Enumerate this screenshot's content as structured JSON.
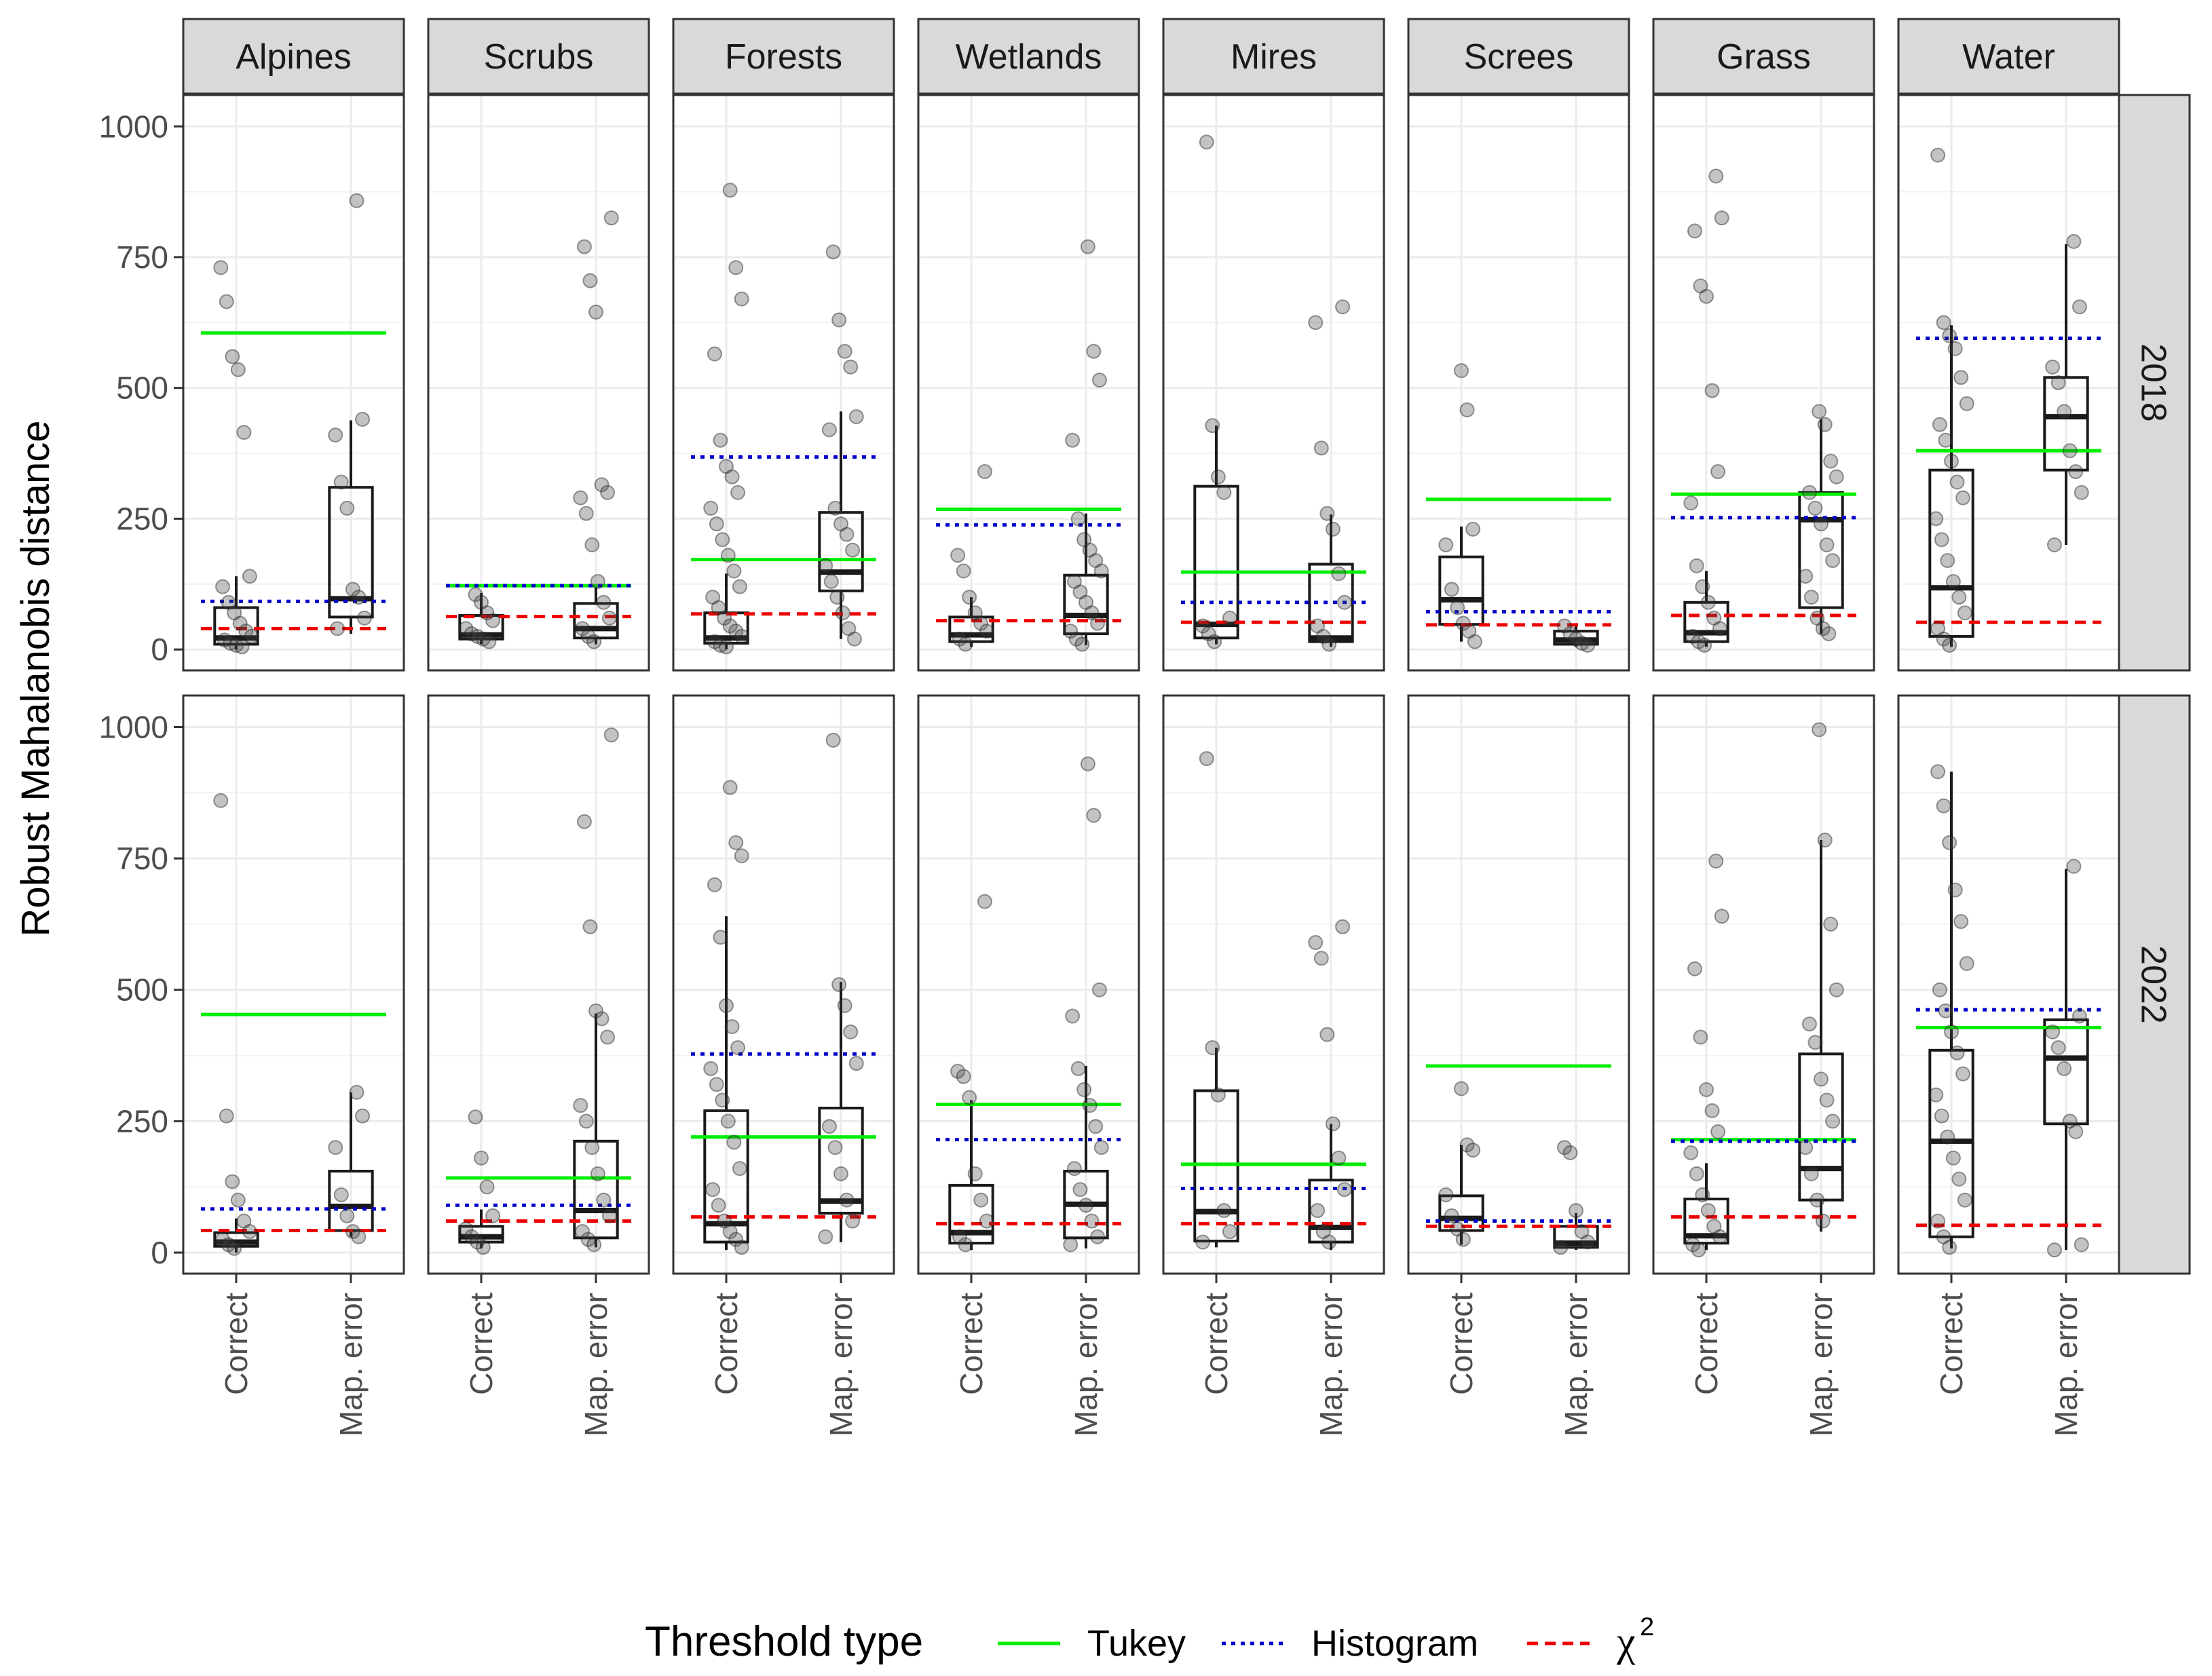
{
  "chart_data": {
    "type": "boxplot",
    "ylabel": "Robust Mahalanobis distance",
    "ylim": [
      -40,
      1060
    ],
    "yticks": [
      0,
      250,
      500,
      750,
      1000
    ],
    "categories": [
      "Correct",
      "Map. error"
    ],
    "legend": {
      "title": "Threshold type",
      "position": "bottom",
      "entries": [
        {
          "name": "Tukey",
          "color": "#00ee00",
          "style": "solid"
        },
        {
          "name": "Histogram",
          "color": "#0000cc",
          "style": "dotted"
        },
        {
          "name": "χ",
          "sup": "2",
          "color": "#ee0000",
          "style": "dashed"
        }
      ]
    },
    "columns": [
      "Alpines",
      "Scrubs",
      "Forests",
      "Wetlands",
      "Mires",
      "Screes",
      "Grass",
      "Water"
    ],
    "rows": [
      "2018",
      "2022"
    ],
    "colors": {
      "tukey": "#00ee00",
      "hist": "#0000cc",
      "chi": "#ee0000",
      "box": "#1a1a1a",
      "point": "#444444",
      "strip": "#d9d9d9",
      "grid": "#ebebeb"
    },
    "panels": [
      {
        "row": "2018",
        "col": "Alpines",
        "tukey": 605,
        "hist": 92,
        "chi": 40,
        "boxes": [
          {
            "q1": 10,
            "med": 22,
            "q3": 80,
            "lo": 0,
            "hi": 140,
            "points": [
              730,
              665,
              560,
              535,
              415,
              140,
              120,
              90,
              70,
              50,
              35,
              25,
              18,
              12,
              8,
              5
            ]
          },
          {
            "q1": 62,
            "med": 97,
            "q3": 310,
            "lo": 30,
            "hi": 438,
            "points": [
              858,
              440,
              410,
              320,
              270,
              115,
              100,
              60,
              40
            ]
          }
        ]
      },
      {
        "row": "2018",
        "col": "Scrubs",
        "tukey": 122,
        "hist": 122,
        "chi": 63,
        "boxes": [
          {
            "q1": 20,
            "med": 28,
            "q3": 65,
            "lo": 10,
            "hi": 108,
            "points": [
              105,
              90,
              70,
              55,
              40,
              30,
              25,
              20,
              15
            ]
          },
          {
            "q1": 22,
            "med": 40,
            "q3": 88,
            "lo": 10,
            "hi": 120,
            "points": [
              825,
              770,
              705,
              645,
              315,
              300,
              290,
              260,
              200,
              130,
              90,
              60,
              40,
              25,
              15
            ]
          }
        ]
      },
      {
        "row": "2018",
        "col": "Forests",
        "tukey": 172,
        "hist": 368,
        "chi": 68,
        "boxes": [
          {
            "q1": 12,
            "med": 22,
            "q3": 70,
            "lo": 0,
            "hi": 145,
            "points": [
              878,
              730,
              670,
              565,
              400,
              350,
              330,
              300,
              270,
              240,
              210,
              180,
              150,
              120,
              100,
              80,
              60,
              45,
              35,
              25,
              15,
              8,
              5
            ]
          },
          {
            "q1": 112,
            "med": 148,
            "q3": 262,
            "lo": 20,
            "hi": 455,
            "points": [
              760,
              630,
              570,
              540,
              445,
              420,
              270,
              240,
              220,
              190,
              160,
              130,
              100,
              70,
              40,
              20
            ]
          }
        ]
      },
      {
        "row": "2018",
        "col": "Wetlands",
        "tukey": 268,
        "hist": 238,
        "chi": 55,
        "boxes": [
          {
            "q1": 15,
            "med": 28,
            "q3": 62,
            "lo": 5,
            "hi": 100,
            "points": [
              340,
              180,
              150,
              100,
              70,
              50,
              35,
              20,
              10
            ]
          },
          {
            "q1": 30,
            "med": 65,
            "q3": 142,
            "lo": 8,
            "hi": 260,
            "points": [
              770,
              570,
              515,
              400,
              250,
              210,
              190,
              170,
              150,
              130,
              110,
              90,
              70,
              50,
              35,
              20,
              10
            ]
          }
        ]
      },
      {
        "row": "2018",
        "col": "Mires",
        "tukey": 148,
        "hist": 90,
        "chi": 52,
        "boxes": [
          {
            "q1": 22,
            "med": 48,
            "q3": 312,
            "lo": 10,
            "hi": 428,
            "points": [
              970,
              428,
              330,
              300,
              60,
              45,
              30,
              15
            ]
          },
          {
            "q1": 15,
            "med": 22,
            "q3": 163,
            "lo": 5,
            "hi": 258,
            "points": [
              655,
              625,
              385,
              260,
              230,
              145,
              90,
              45,
              25,
              10
            ]
          }
        ]
      },
      {
        "row": "2018",
        "col": "Screes",
        "tukey": 287,
        "hist": 72,
        "chi": 47,
        "boxes": [
          {
            "q1": 48,
            "med": 95,
            "q3": 177,
            "lo": 15,
            "hi": 235,
            "points": [
              533,
              458,
              230,
              200,
              115,
              80,
              50,
              35,
              15
            ]
          },
          {
            "q1": 10,
            "med": 18,
            "q3": 35,
            "lo": 5,
            "hi": 50,
            "points": [
              45,
              30,
              20,
              12,
              8
            ]
          }
        ]
      },
      {
        "row": "2018",
        "col": "Grass",
        "tukey": 297,
        "hist": 252,
        "chi": 65,
        "boxes": [
          {
            "q1": 15,
            "med": 32,
            "q3": 90,
            "lo": 5,
            "hi": 150,
            "points": [
              905,
              825,
              800,
              695,
              675,
              495,
              340,
              280,
              160,
              120,
              90,
              60,
              40,
              25,
              15,
              8
            ]
          },
          {
            "q1": 80,
            "med": 248,
            "q3": 300,
            "lo": 30,
            "hi": 440,
            "points": [
              455,
              430,
              360,
              330,
              300,
              270,
              240,
              200,
              170,
              140,
              100,
              60,
              40,
              30
            ]
          }
        ]
      },
      {
        "row": "2018",
        "col": "Water",
        "tukey": 380,
        "hist": 595,
        "chi": 52,
        "boxes": [
          {
            "q1": 25,
            "med": 118,
            "q3": 343,
            "lo": 5,
            "hi": 620,
            "points": [
              945,
              625,
              600,
              575,
              520,
              470,
              430,
              400,
              360,
              320,
              290,
              250,
              210,
              170,
              130,
              100,
              70,
              40,
              20,
              8
            ]
          },
          {
            "q1": 343,
            "med": 445,
            "q3": 520,
            "lo": 200,
            "hi": 775,
            "points": [
              780,
              655,
              540,
              510,
              455,
              380,
              340,
              300,
              200
            ]
          }
        ]
      },
      {
        "row": "2022",
        "col": "Alpines",
        "tukey": 453,
        "hist": 83,
        "chi": 42,
        "boxes": [
          {
            "q1": 12,
            "med": 20,
            "q3": 38,
            "lo": 0,
            "hi": 65,
            "points": [
              860,
              260,
              135,
              100,
              60,
              40,
              25,
              15,
              8
            ]
          },
          {
            "q1": 42,
            "med": 88,
            "q3": 155,
            "lo": 30,
            "hi": 305,
            "points": [
              305,
              260,
              200,
              110,
              70,
              40,
              30
            ]
          }
        ]
      },
      {
        "row": "2022",
        "col": "Scrubs",
        "tukey": 142,
        "hist": 90,
        "chi": 60,
        "boxes": [
          {
            "q1": 20,
            "med": 30,
            "q3": 50,
            "lo": 8,
            "hi": 82,
            "points": [
              258,
              180,
              125,
              70,
              45,
              30,
              20,
              10
            ]
          },
          {
            "q1": 28,
            "med": 80,
            "q3": 212,
            "lo": 10,
            "hi": 455,
            "points": [
              985,
              820,
              620,
              460,
              445,
              410,
              280,
              250,
              200,
              150,
              100,
              70,
              40,
              25,
              15
            ]
          }
        ]
      },
      {
        "row": "2022",
        "col": "Forests",
        "tukey": 220,
        "hist": 378,
        "chi": 68,
        "boxes": [
          {
            "q1": 20,
            "med": 55,
            "q3": 270,
            "lo": 5,
            "hi": 640,
            "points": [
              885,
              780,
              755,
              700,
              600,
              470,
              430,
              390,
              350,
              320,
              290,
              250,
              210,
              160,
              120,
              90,
              60,
              40,
              25,
              10
            ]
          },
          {
            "q1": 75,
            "med": 98,
            "q3": 275,
            "lo": 20,
            "hi": 515,
            "points": [
              975,
              510,
              470,
              420,
              360,
              240,
              200,
              150,
              100,
              60,
              30
            ]
          }
        ]
      },
      {
        "row": "2022",
        "col": "Wetlands",
        "tukey": 282,
        "hist": 215,
        "chi": 55,
        "boxes": [
          {
            "q1": 18,
            "med": 38,
            "q3": 128,
            "lo": 5,
            "hi": 290,
            "points": [
              668,
              345,
              335,
              295,
              150,
              100,
              60,
              30,
              15
            ]
          },
          {
            "q1": 28,
            "med": 92,
            "q3": 155,
            "lo": 8,
            "hi": 355,
            "points": [
              930,
              832,
              500,
              450,
              350,
              310,
              280,
              240,
              200,
              160,
              120,
              90,
              60,
              30,
              15
            ]
          }
        ]
      },
      {
        "row": "2022",
        "col": "Mires",
        "tukey": 168,
        "hist": 122,
        "chi": 55,
        "boxes": [
          {
            "q1": 22,
            "med": 78,
            "q3": 308,
            "lo": 10,
            "hi": 390,
            "points": [
              940,
              390,
              300,
              80,
              40,
              20
            ]
          },
          {
            "q1": 20,
            "med": 48,
            "q3": 138,
            "lo": 5,
            "hi": 245,
            "points": [
              620,
              590,
              560,
              415,
              245,
              180,
              120,
              80,
              40,
              20
            ]
          }
        ]
      },
      {
        "row": "2022",
        "col": "Screes",
        "tukey": 355,
        "hist": 60,
        "chi": 50,
        "boxes": [
          {
            "q1": 42,
            "med": 65,
            "q3": 108,
            "lo": 15,
            "hi": 205,
            "points": [
              312,
              205,
              195,
              110,
              70,
              45,
              25
            ]
          },
          {
            "q1": 10,
            "med": 18,
            "q3": 50,
            "lo": 5,
            "hi": 75,
            "points": [
              200,
              190,
              80,
              40,
              20,
              10
            ]
          }
        ]
      },
      {
        "row": "2022",
        "col": "Grass",
        "tukey": 215,
        "hist": 212,
        "chi": 68,
        "boxes": [
          {
            "q1": 18,
            "med": 32,
            "q3": 102,
            "lo": 5,
            "hi": 170,
            "points": [
              745,
              640,
              540,
              410,
              310,
              270,
              230,
              190,
              150,
              110,
              80,
              50,
              30,
              15,
              5
            ]
          },
          {
            "q1": 100,
            "med": 160,
            "q3": 378,
            "lo": 40,
            "hi": 785,
            "points": [
              995,
              785,
              625,
              500,
              435,
              400,
              330,
              290,
              250,
              200,
              150,
              100,
              60
            ]
          }
        ]
      },
      {
        "row": "2022",
        "col": "Water",
        "tukey": 428,
        "hist": 462,
        "chi": 52,
        "boxes": [
          {
            "q1": 30,
            "med": 212,
            "q3": 385,
            "lo": 8,
            "hi": 915,
            "points": [
              915,
              850,
              780,
              690,
              630,
              550,
              500,
              460,
              420,
              380,
              340,
              300,
              260,
              220,
              180,
              140,
              100,
              60,
              30,
              10
            ]
          },
          {
            "q1": 245,
            "med": 370,
            "q3": 443,
            "lo": 5,
            "hi": 730,
            "points": [
              735,
              450,
              420,
              390,
              350,
              250,
              230,
              15,
              5
            ]
          }
        ]
      }
    ]
  }
}
